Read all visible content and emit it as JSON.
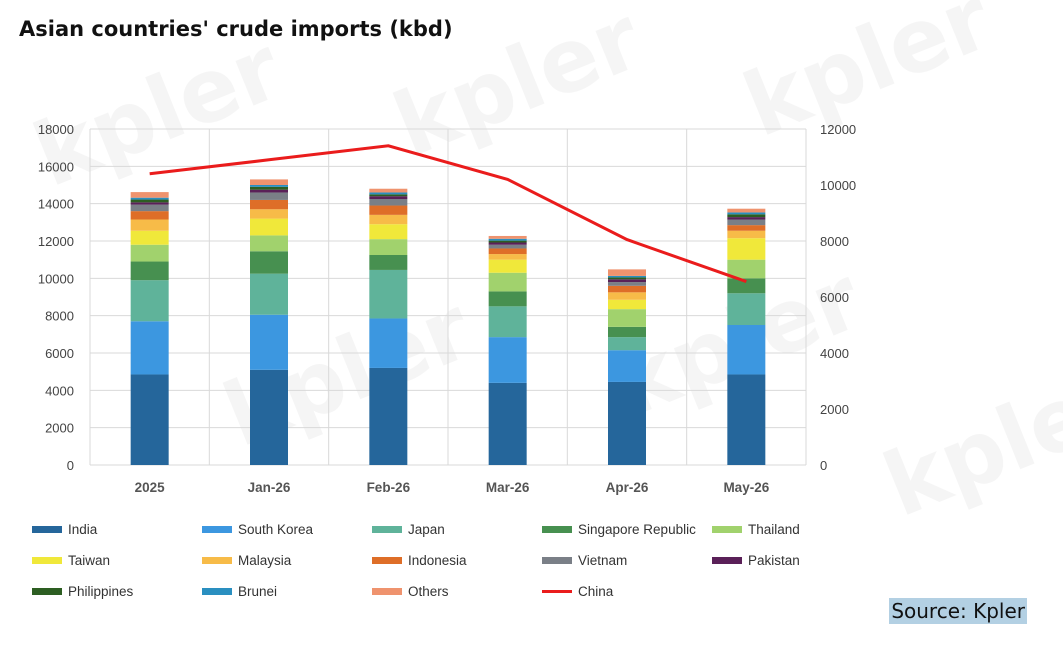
{
  "title": "Asian countries' crude imports (kbd)",
  "source": "Source: Kpler",
  "watermark": "kpler",
  "chart_data": {
    "type": "bar",
    "stacked": true,
    "categories": [
      "2025",
      "Jan-26",
      "Feb-26",
      "Mar-26",
      "Apr-26",
      "May-26"
    ],
    "ylim": [
      0,
      18000
    ],
    "y_ticks": [
      0,
      2000,
      4000,
      6000,
      8000,
      10000,
      12000,
      14000,
      16000,
      18000
    ],
    "y2lim": [
      0,
      12000
    ],
    "y2_ticks": [
      0,
      2000,
      4000,
      6000,
      8000,
      10000,
      12000
    ],
    "grid": true,
    "legend_position": "bottom",
    "series": [
      {
        "name": "India",
        "color": "#25669b",
        "values": [
          4850,
          5100,
          5200,
          4400,
          4450,
          4850
        ]
      },
      {
        "name": "South Korea",
        "color": "#3c97e0",
        "values": [
          2850,
          2950,
          2650,
          2450,
          1700,
          2650
        ]
      },
      {
        "name": "Japan",
        "color": "#5fb39a",
        "values": [
          2200,
          2200,
          2600,
          1650,
          700,
          1700
        ]
      },
      {
        "name": "Singapore Republic",
        "color": "#479050",
        "values": [
          1000,
          1200,
          800,
          800,
          550,
          800
        ]
      },
      {
        "name": "Thailand",
        "color": "#a1d26d",
        "values": [
          900,
          850,
          850,
          1000,
          950,
          1000
        ]
      },
      {
        "name": "Taiwan",
        "color": "#f0e83a",
        "values": [
          750,
          900,
          800,
          700,
          500,
          1150
        ]
      },
      {
        "name": "Malaysia",
        "color": "#f7bb48",
        "values": [
          600,
          500,
          500,
          300,
          400,
          400
        ]
      },
      {
        "name": "Indonesia",
        "color": "#de6e28",
        "values": [
          450,
          500,
          500,
          300,
          350,
          300
        ]
      },
      {
        "name": "Vietnam",
        "color": "#7a7f87",
        "values": [
          350,
          400,
          350,
          200,
          200,
          300
        ]
      },
      {
        "name": "Pakistan",
        "color": "#5a2058",
        "values": [
          120,
          150,
          150,
          120,
          150,
          130
        ]
      },
      {
        "name": "Philippines",
        "color": "#2d5e22",
        "values": [
          150,
          150,
          100,
          100,
          100,
          150
        ]
      },
      {
        "name": "Brunei",
        "color": "#2a8fc0",
        "values": [
          100,
          100,
          100,
          100,
          80,
          100
        ]
      },
      {
        "name": "Others",
        "color": "#ef936e",
        "values": [
          300,
          300,
          200,
          150,
          350,
          200
        ]
      }
    ],
    "line_series": {
      "name": "China",
      "color": "#ea1c1c",
      "axis": "right",
      "values": [
        10400,
        10900,
        11400,
        10200,
        8050,
        6550
      ]
    }
  }
}
